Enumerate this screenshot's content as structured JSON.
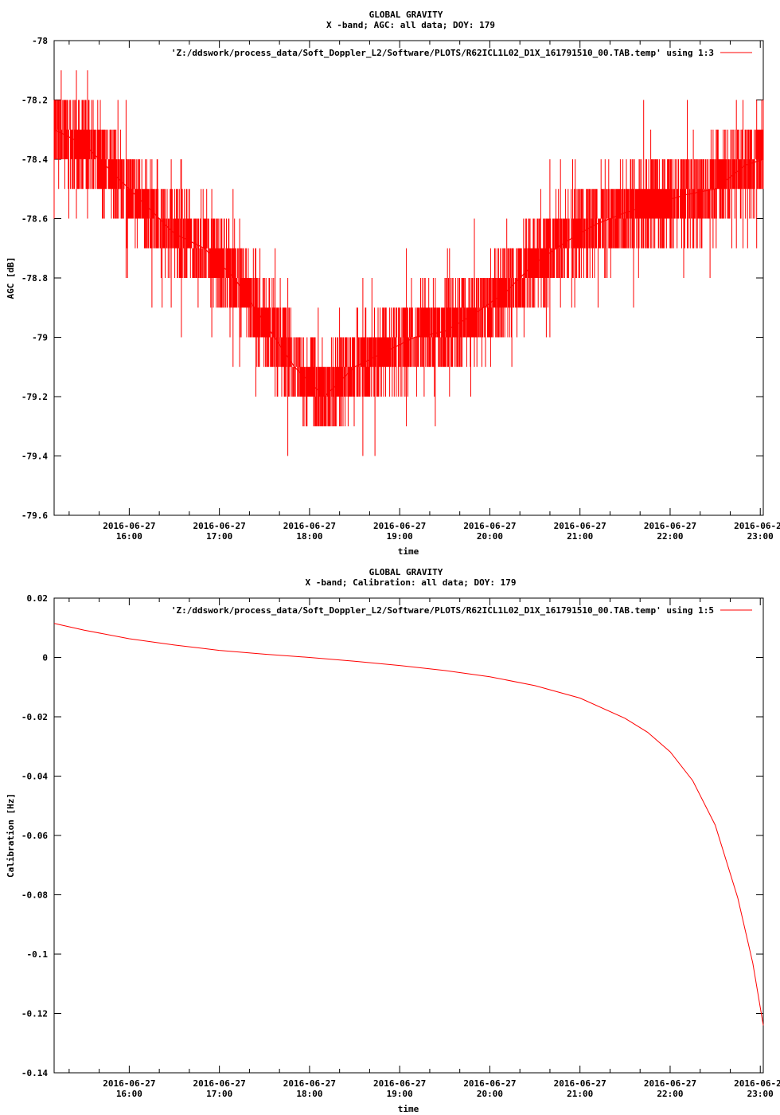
{
  "chart_data": [
    {
      "type": "line",
      "title": "GLOBAL GRAVITY",
      "subtitle": "X -band; AGC: all data; DOY: 179",
      "xlabel": "time",
      "ylabel": "AGC [dB]",
      "ylim": [
        -79.6,
        -78
      ],
      "yticks": [
        -78,
        -78.2,
        -78.4,
        -78.6,
        -78.8,
        -79,
        -79.2,
        -79.4,
        -79.6
      ],
      "ytick_labels": [
        "-78",
        "-78.2",
        "-78.4",
        "-78.6",
        "-78.8",
        "-79",
        "-79.2",
        "-79.4",
        "-79.6"
      ],
      "xlim": [
        "2016-06-27 15:10",
        "2016-06-27 23:02"
      ],
      "xticks": [
        "16:00",
        "17:00",
        "18:00",
        "19:00",
        "20:00",
        "21:00",
        "22:00",
        "23:00"
      ],
      "xtick_date": "2016-06-27",
      "color": "#ff0000",
      "grid": false,
      "legend_placement": "top-right",
      "series": [
        {
          "name": "'Z:/ddswork/process_data/Soft_Doppler_L2/Software/PLOTS/R62ICL1L02_D1X_161791510_00.TAB.temp' using 1:3",
          "x": [
            "15:10",
            "15:30",
            "15:50",
            "16:10",
            "16:30",
            "16:50",
            "17:10",
            "17:30",
            "17:50",
            "18:10",
            "18:30",
            "18:50",
            "19:10",
            "19:30",
            "19:50",
            "20:10",
            "20:30",
            "20:50",
            "21:10",
            "21:30",
            "21:50",
            "22:10",
            "22:30",
            "22:50",
            "23:02"
          ],
          "values": [
            -78.3,
            -78.35,
            -78.45,
            -78.55,
            -78.65,
            -78.7,
            -78.8,
            -78.95,
            -79.1,
            -79.2,
            -79.1,
            -79.05,
            -79.0,
            -78.98,
            -78.92,
            -78.85,
            -78.75,
            -78.68,
            -78.62,
            -78.58,
            -78.55,
            -78.52,
            -78.5,
            -78.42,
            -78.4
          ]
        }
      ]
    },
    {
      "type": "line",
      "title": "GLOBAL GRAVITY",
      "subtitle": "X -band; Calibration: all data; DOY: 179",
      "xlabel": "time",
      "ylabel": "Calibration [Hz]",
      "ylim": [
        -0.14,
        0.02
      ],
      "yticks": [
        0.02,
        0,
        -0.02,
        -0.04,
        -0.06,
        -0.08,
        -0.1,
        -0.12,
        -0.14
      ],
      "ytick_labels": [
        "0.02",
        "0",
        "-0.02",
        "-0.04",
        "-0.06",
        "-0.08",
        "-0.1",
        "-0.12",
        "-0.14"
      ],
      "xlim": [
        "2016-06-27 15:10",
        "2016-06-27 23:02"
      ],
      "xticks": [
        "16:00",
        "17:00",
        "18:00",
        "19:00",
        "20:00",
        "21:00",
        "22:00",
        "23:00"
      ],
      "xtick_date": "2016-06-27",
      "color": "#ff0000",
      "grid": false,
      "legend_placement": "top-right",
      "series": [
        {
          "name": "'Z:/ddswork/process_data/Soft_Doppler_L2/Software/PLOTS/R62ICL1L02_D1X_161791510_00.TAB.temp' using 1:5",
          "x": [
            "15:10",
            "15:30",
            "16:00",
            "16:30",
            "17:00",
            "17:30",
            "18:00",
            "18:30",
            "19:00",
            "19:30",
            "20:00",
            "20:30",
            "21:00",
            "21:30",
            "21:45",
            "22:00",
            "22:15",
            "22:30",
            "22:45",
            "22:55",
            "23:02"
          ],
          "values": [
            0.0115,
            0.0092,
            0.0063,
            0.0042,
            0.0024,
            0.0011,
            0.0,
            -0.0013,
            -0.0027,
            -0.0044,
            -0.0065,
            -0.0095,
            -0.0137,
            -0.0205,
            -0.0252,
            -0.0318,
            -0.0415,
            -0.0565,
            -0.081,
            -0.103,
            -0.124
          ]
        }
      ]
    }
  ]
}
